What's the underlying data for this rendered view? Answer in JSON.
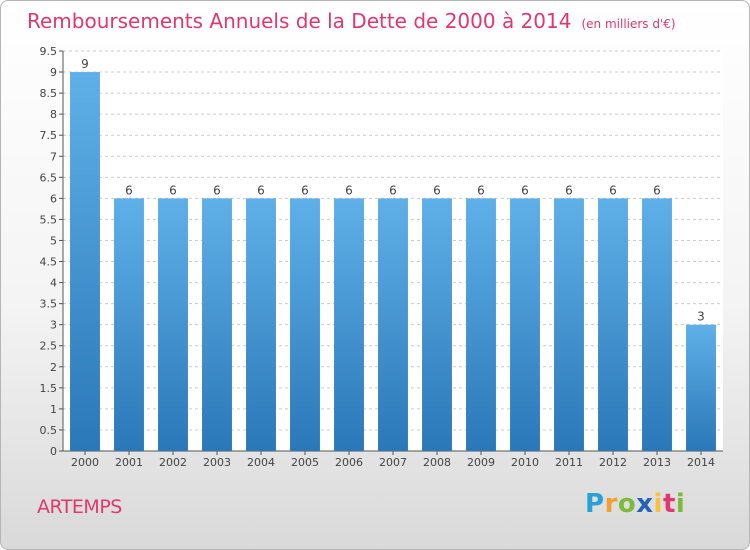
{
  "title": "Remboursements Annuels de la Dette de 2000 à 2014",
  "unit": "(en milliers d'€)",
  "commune": "ARTEMPS",
  "logo": {
    "letters": [
      "P",
      "r",
      "o",
      "x",
      "i",
      "t",
      "i"
    ],
    "colors": [
      "#27a2d8",
      "#f0a030",
      "#7cba3b",
      "#2463b5",
      "#f4c33b",
      "#e0386e",
      "#7cba3b"
    ]
  },
  "colors": {
    "title": "#e0386e",
    "bar_light": "#5fb0e8",
    "bar_dark": "#2a78b8",
    "grid": "#cccccc"
  },
  "chart_data": {
    "type": "bar",
    "categories": [
      "2000",
      "2001",
      "2002",
      "2003",
      "2004",
      "2005",
      "2006",
      "2007",
      "2008",
      "2009",
      "2010",
      "2011",
      "2012",
      "2013",
      "2014"
    ],
    "values": [
      9,
      6,
      6,
      6,
      6,
      6,
      6,
      6,
      6,
      6,
      6,
      6,
      6,
      6,
      3
    ],
    "yticks": [
      "0",
      "0.5",
      "1",
      "1.5",
      "2",
      "2.5",
      "3",
      "3.5",
      "4",
      "4.5",
      "5",
      "5.5",
      "6",
      "6.5",
      "7",
      "7.5",
      "8",
      "8.5",
      "9",
      "9.5"
    ],
    "ylim": [
      0,
      9.5
    ],
    "grid": true,
    "legend": false
  }
}
